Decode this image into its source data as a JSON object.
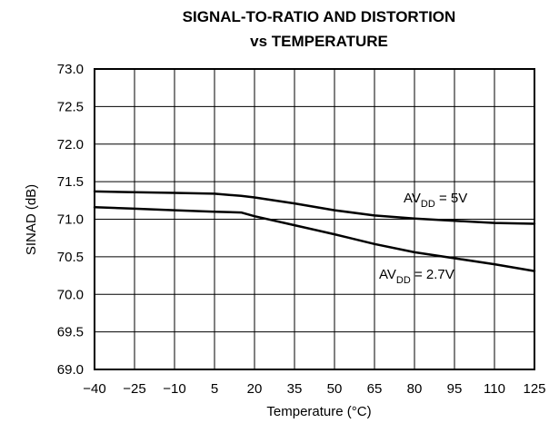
{
  "chart_data": {
    "type": "line",
    "title_line1": "SIGNAL-TO-RATIO AND DISTORTION",
    "title_line2": "vs TEMPERATURE",
    "xlabel": "Temperature (°C)",
    "ylabel": "SINAD (dB)",
    "xlim": [
      -40,
      125
    ],
    "ylim": [
      69.0,
      73.0
    ],
    "x_ticks": [
      "−40",
      "−25",
      "−10",
      "5",
      "20",
      "35",
      "50",
      "65",
      "80",
      "95",
      "110",
      "125"
    ],
    "y_ticks": [
      "73.0",
      "72.5",
      "72.0",
      "71.5",
      "71.0",
      "70.5",
      "70.0",
      "69.5",
      "69.0"
    ],
    "grid": true,
    "series": [
      {
        "name": "AVDD = 5V",
        "label_main": "AV",
        "label_sub": "DD",
        "label_rest": " = 5V",
        "x": [
          -40,
          -25,
          -10,
          5,
          15,
          20,
          35,
          50,
          65,
          80,
          95,
          110,
          125
        ],
        "values": [
          71.37,
          71.36,
          71.35,
          71.34,
          71.31,
          71.29,
          71.21,
          71.12,
          71.05,
          71.01,
          70.98,
          70.95,
          70.94
        ]
      },
      {
        "name": "AVDD = 2.7V",
        "label_main": "AV",
        "label_sub": "DD",
        "label_rest": " = 2.7V",
        "x": [
          -40,
          -25,
          -10,
          5,
          15,
          20,
          35,
          50,
          65,
          80,
          95,
          110,
          125
        ],
        "values": [
          71.16,
          71.14,
          71.12,
          71.1,
          71.09,
          71.04,
          70.92,
          70.8,
          70.67,
          70.56,
          70.48,
          70.4,
          70.31
        ]
      }
    ]
  }
}
